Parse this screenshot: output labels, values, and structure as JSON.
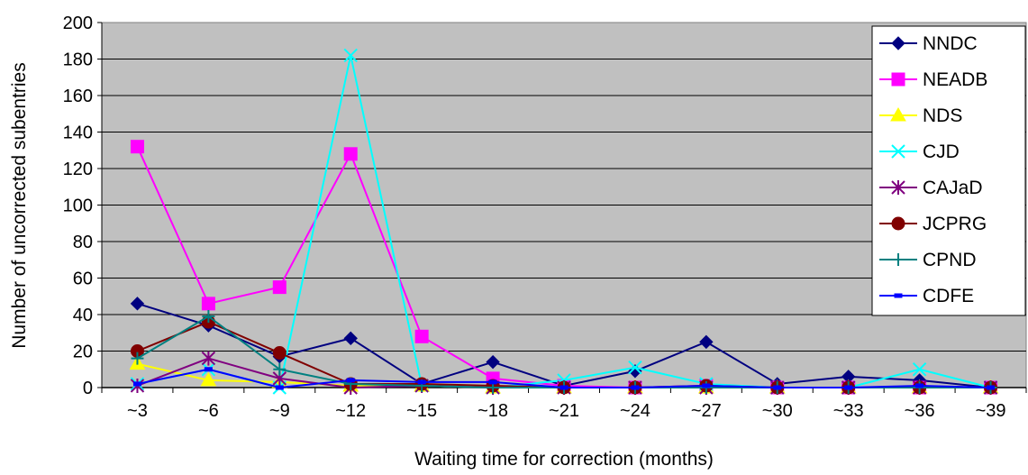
{
  "chart_data": {
    "type": "line",
    "title": "",
    "xlabel": "Waiting time for correction (months)",
    "ylabel": "Number of uncorrected subentries",
    "categories": [
      "~3",
      "~6",
      "~9",
      "~12",
      "~15",
      "~18",
      "~21",
      "~24",
      "~27",
      "~30",
      "~33",
      "~36",
      "~39"
    ],
    "ylim": [
      0,
      200
    ],
    "yticks": [
      0,
      20,
      40,
      60,
      80,
      100,
      120,
      140,
      160,
      180,
      200
    ],
    "grid": true,
    "legend_position": "right",
    "plot_background": "#c0c0c0",
    "series": [
      {
        "name": "NNDC",
        "color": "#000080",
        "marker": "diamond",
        "values": [
          46,
          34,
          17,
          27,
          2,
          14,
          1,
          9,
          25,
          2,
          6,
          4,
          0
        ]
      },
      {
        "name": "NEADB",
        "color": "#ff00ff",
        "marker": "square",
        "values": [
          132,
          46,
          55,
          128,
          28,
          5,
          1,
          0,
          1,
          0,
          0,
          0,
          0
        ]
      },
      {
        "name": "NDS",
        "color": "#ffff00",
        "marker": "triangle",
        "values": [
          13,
          4,
          3,
          1,
          1,
          0,
          0,
          0,
          0,
          0,
          0,
          0,
          0
        ]
      },
      {
        "name": "CJD",
        "color": "#00ffff",
        "marker": "x",
        "values": [
          2,
          10,
          0,
          182,
          1,
          0,
          4,
          11,
          2,
          0,
          0,
          10,
          0
        ]
      },
      {
        "name": "CAJaD",
        "color": "#800080",
        "marker": "star",
        "values": [
          1,
          16,
          5,
          0,
          1,
          0,
          0,
          0,
          0,
          0,
          0,
          0,
          0
        ]
      },
      {
        "name": "JCPRG",
        "color": "#800000",
        "marker": "circle",
        "values": [
          20,
          36,
          19,
          2,
          2,
          1,
          0,
          0,
          1,
          0,
          0,
          0,
          0
        ]
      },
      {
        "name": "CPND",
        "color": "#008080",
        "marker": "plus",
        "values": [
          16,
          39,
          10,
          2,
          1,
          0,
          0,
          0,
          0,
          0,
          0,
          0,
          0
        ]
      },
      {
        "name": "CDFE",
        "color": "#0000ff",
        "marker": "dash",
        "values": [
          2,
          10,
          0,
          4,
          3,
          3,
          0,
          0,
          1,
          0,
          0,
          1,
          0
        ]
      }
    ]
  }
}
